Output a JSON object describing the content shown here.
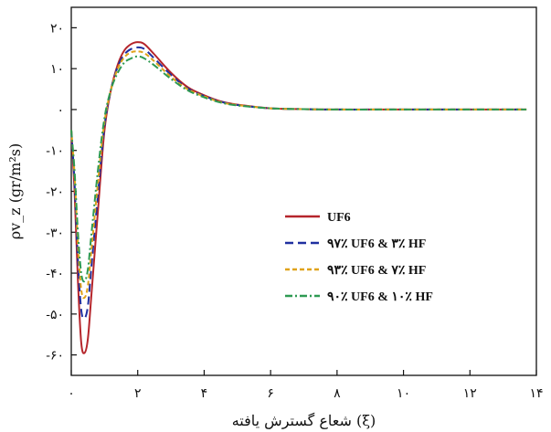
{
  "chart_data": {
    "type": "line",
    "xlabel": "شعاع گسترش یافته (ξ)",
    "ylabel": "ρv_z (gr/m²s)",
    "xlim": [
      0,
      14
    ],
    "ylim": [
      -65,
      25
    ],
    "x_ticks": [
      0,
      2,
      4,
      6,
      8,
      10,
      12,
      14
    ],
    "x_tick_labels": [
      "۰",
      "۲",
      "۴",
      "۶",
      "۸",
      "۱۰",
      "۱۲",
      "۱۴"
    ],
    "y_ticks": [
      20,
      10,
      0,
      -10,
      -20,
      -30,
      -40,
      -50,
      -60
    ],
    "y_tick_labels": [
      "۲۰",
      "۱۰",
      "۰",
      "-۱۰",
      "-۲۰",
      "-۳۰",
      "-۴۰",
      "-۵۰",
      "-۶۰"
    ],
    "grid": false,
    "legend_position": "center-right",
    "series": [
      {
        "name": "UF6",
        "color": "#b5252b",
        "dash": "solid",
        "x": [
          0,
          0.1,
          0.2,
          0.3,
          0.4,
          0.5,
          0.6,
          0.8,
          1.0,
          1.2,
          1.4,
          1.6,
          1.8,
          2.0,
          2.2,
          2.5,
          3.0,
          3.5,
          4.0,
          4.5,
          5.0,
          6.0,
          7.0,
          8.0,
          10.0,
          12.0,
          13.7
        ],
        "y": [
          -5,
          -20,
          -42,
          -57,
          -59.5,
          -56,
          -46,
          -25,
          -5,
          5,
          11,
          14.5,
          16,
          16.5,
          16,
          13.5,
          9,
          5.5,
          3.5,
          2,
          1.2,
          0.3,
          0.1,
          0,
          0,
          0,
          0
        ]
      },
      {
        "name": "۹۷٪ UF6 & ۳٪ HF",
        "color": "#1f2fa0",
        "dash": "dashed",
        "x": [
          0,
          0.1,
          0.2,
          0.3,
          0.4,
          0.5,
          0.6,
          0.8,
          1.0,
          1.2,
          1.4,
          1.6,
          1.8,
          2.0,
          2.2,
          2.5,
          3.0,
          3.5,
          4.0,
          4.5,
          5.0,
          6.0,
          7.0,
          8.0,
          10.0,
          12.0,
          13.7
        ],
        "y": [
          -5,
          -18,
          -37,
          -49,
          -51,
          -48,
          -39,
          -21,
          -4,
          5,
          10.5,
          13.5,
          14.8,
          15.2,
          14.8,
          12.5,
          8.5,
          5.2,
          3.3,
          1.9,
          1.1,
          0.3,
          0.1,
          0,
          0,
          0,
          0
        ]
      },
      {
        "name": "۹۳٪ UF6 & ۷٪ HF",
        "color": "#e0a21a",
        "dash": "shortdash",
        "x": [
          0,
          0.1,
          0.2,
          0.3,
          0.4,
          0.5,
          0.6,
          0.8,
          1.0,
          1.2,
          1.4,
          1.6,
          1.8,
          2.0,
          2.2,
          2.5,
          3.0,
          3.5,
          4.0,
          4.5,
          5.0,
          6.0,
          7.0,
          8.0,
          10.0,
          12.0,
          13.7
        ],
        "y": [
          -5,
          -16,
          -33,
          -44,
          -46,
          -43,
          -35,
          -18,
          -3,
          5,
          10,
          12.8,
          14,
          14.2,
          13.8,
          11.8,
          8,
          5,
          3.2,
          1.8,
          1.1,
          0.3,
          0.1,
          0,
          0,
          0,
          0
        ]
      },
      {
        "name": "۹۰٪ UF6 & ۱۰٪ HF",
        "color": "#2e9a52",
        "dash": "dashdot",
        "x": [
          0,
          0.1,
          0.2,
          0.3,
          0.4,
          0.5,
          0.6,
          0.8,
          1.0,
          1.2,
          1.4,
          1.6,
          1.8,
          2.0,
          2.2,
          2.5,
          3.0,
          3.5,
          4.0,
          4.5,
          5.0,
          6.0,
          7.0,
          8.0,
          10.0,
          12.0,
          13.7
        ],
        "y": [
          -5,
          -15,
          -30,
          -40,
          -42,
          -39,
          -31,
          -15,
          -2,
          5,
          9,
          11.5,
          12.5,
          13,
          12.5,
          10.8,
          7.5,
          4.7,
          3,
          1.7,
          1,
          0.3,
          0.1,
          0,
          0,
          0,
          0
        ]
      }
    ]
  }
}
